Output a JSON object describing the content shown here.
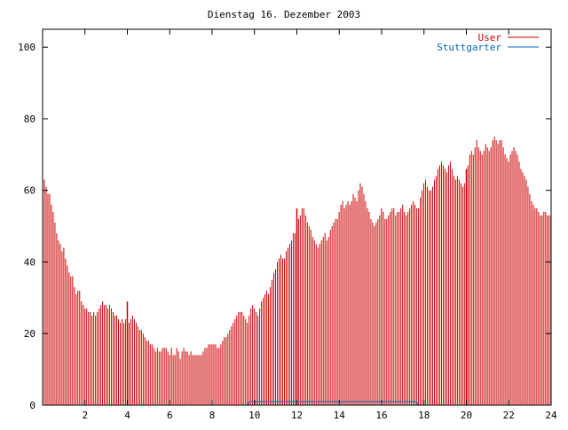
{
  "chart_data": {
    "type": "bar",
    "title": "Dienstag 16. Dezember 2003",
    "xlabel": "",
    "ylabel": "",
    "xlim": [
      0,
      24
    ],
    "ylim": [
      0,
      105
    ],
    "x_ticks": [
      "2",
      "4",
      "6",
      "8",
      "10",
      "12",
      "14",
      "16",
      "18",
      "20",
      "22",
      "24"
    ],
    "y_ticks": [
      "0",
      "20",
      "40",
      "60",
      "80",
      "100"
    ],
    "grid": false,
    "legend_position": "top-right",
    "series": [
      {
        "name": "User",
        "color": "#cc0000",
        "interval_hours": 0.0833,
        "values": [
          63,
          61,
          59,
          59,
          56,
          54,
          51,
          48,
          46,
          45,
          43,
          44,
          41,
          39,
          37,
          36,
          36,
          33,
          31,
          32,
          32,
          29,
          28,
          27,
          27,
          26,
          26,
          25,
          26,
          25,
          26,
          27,
          28,
          29,
          28,
          28,
          27,
          28,
          27,
          26,
          25,
          25,
          24,
          23,
          24,
          23,
          24,
          24,
          23,
          24,
          25,
          24,
          23,
          22,
          21,
          21,
          20,
          19,
          18,
          18,
          17,
          17,
          16,
          15,
          16,
          15,
          15,
          16,
          16,
          16,
          15,
          14,
          16,
          14,
          14,
          16,
          15,
          13,
          15,
          16,
          15,
          15,
          14,
          15,
          14,
          14,
          14,
          14,
          14,
          14,
          15,
          16,
          16,
          17,
          17,
          17,
          17,
          17,
          16,
          16,
          17,
          18,
          19,
          19,
          20,
          21,
          22,
          23,
          24,
          25,
          26,
          26,
          26,
          25,
          24,
          23,
          25,
          27,
          28,
          27,
          26,
          25,
          27,
          29,
          30,
          31,
          32,
          31,
          33,
          35,
          37,
          38,
          40,
          41,
          42,
          41,
          41,
          43,
          44,
          45,
          46,
          48,
          48,
          50,
          52,
          53,
          55,
          55,
          53,
          51,
          50,
          49,
          47,
          46,
          45,
          44,
          45,
          46,
          47,
          48,
          46,
          47,
          49,
          50,
          51,
          52,
          52,
          54,
          56,
          57,
          55,
          56,
          57,
          56,
          57,
          59,
          58,
          57,
          60,
          62,
          61,
          59,
          57,
          55,
          54,
          52,
          51,
          50,
          51,
          52,
          53,
          55,
          54,
          52,
          52,
          53,
          54,
          55,
          55,
          53,
          54,
          54,
          55,
          56,
          54,
          53,
          54,
          55,
          56,
          57,
          56,
          55,
          55,
          58,
          60,
          62,
          63,
          61,
          60,
          60,
          61,
          63,
          64,
          66,
          67,
          68,
          67,
          66,
          65,
          67,
          68,
          66,
          64,
          63,
          64,
          63,
          62,
          61,
          62,
          61,
          67,
          70,
          71,
          70,
          72,
          74,
          72,
          71,
          70,
          71,
          73,
          72,
          71,
          72,
          74,
          75,
          74,
          73,
          74,
          74,
          72,
          70,
          69,
          68,
          70,
          71,
          72,
          71,
          70,
          68,
          66,
          65,
          64,
          63,
          61,
          59,
          57,
          56,
          55,
          55,
          54,
          53,
          53,
          54,
          54,
          53,
          53,
          53
        ]
      },
      {
        "name": "Stuttgarter",
        "color": "#0066bb",
        "interval_hours": 0.0833,
        "values": [
          0,
          0,
          0,
          0,
          0,
          0,
          0,
          0,
          0,
          0,
          0,
          0,
          0,
          0,
          0,
          0,
          0,
          0,
          0,
          0,
          0,
          0,
          0,
          0,
          0,
          0,
          0,
          0,
          0,
          0,
          0,
          0,
          0,
          0,
          0,
          0,
          0,
          0,
          0,
          0,
          0,
          0,
          0,
          0,
          0,
          0,
          0,
          0,
          0,
          0,
          0,
          0,
          0,
          0,
          0,
          0,
          0,
          0,
          0,
          0,
          0,
          0,
          0,
          0,
          0,
          0,
          0,
          0,
          0,
          0,
          0,
          0,
          0,
          0,
          0,
          0,
          0,
          0,
          0,
          0,
          0,
          0,
          0,
          0,
          0,
          0,
          0,
          0,
          0,
          0,
          0,
          0,
          0,
          0,
          0,
          0,
          0,
          0,
          0,
          0,
          0,
          0,
          0,
          0,
          0,
          0,
          0,
          0,
          0,
          0,
          0,
          0,
          0,
          0,
          0,
          0,
          1,
          1,
          1,
          1,
          1,
          1,
          1,
          1,
          1,
          1,
          1,
          1,
          1,
          1,
          1,
          1,
          1,
          1,
          1,
          1,
          1,
          1,
          1,
          1,
          1,
          1,
          1,
          1,
          1,
          1,
          1,
          1,
          1,
          1,
          1,
          1,
          1,
          1,
          1,
          1,
          1,
          1,
          1,
          1,
          1,
          1,
          1,
          1,
          1,
          1,
          1,
          1,
          1,
          1,
          1,
          1,
          1,
          1,
          1,
          1,
          1,
          1,
          1,
          1,
          1,
          1,
          1,
          1,
          1,
          1,
          1,
          1,
          1,
          1,
          1,
          1,
          1,
          1,
          1,
          1,
          1,
          1,
          1,
          1,
          1,
          1,
          1,
          1,
          1,
          1,
          1,
          1,
          1,
          1,
          1,
          1,
          0,
          0,
          0,
          0,
          0,
          0,
          0,
          0,
          0,
          0,
          0,
          0,
          0,
          0,
          0,
          0,
          0,
          0,
          0,
          0,
          0,
          0,
          0,
          0,
          0,
          0,
          0,
          0,
          0,
          0,
          0,
          0,
          0,
          0,
          0,
          0,
          0,
          0,
          0,
          0,
          0,
          0,
          0,
          0,
          0,
          0,
          0,
          0,
          0,
          0,
          0,
          0,
          0,
          0,
          0,
          0,
          0,
          0,
          0,
          0,
          0,
          0,
          0,
          0,
          0,
          0,
          0,
          0,
          0,
          0,
          0,
          0,
          0,
          0,
          0,
          0
        ]
      }
    ],
    "vertical_markers": [
      {
        "x": 4,
        "color": "#cc0000"
      },
      {
        "x": 12,
        "color": "#cc0000"
      },
      {
        "x": 20,
        "color": "#cc0000"
      }
    ]
  }
}
